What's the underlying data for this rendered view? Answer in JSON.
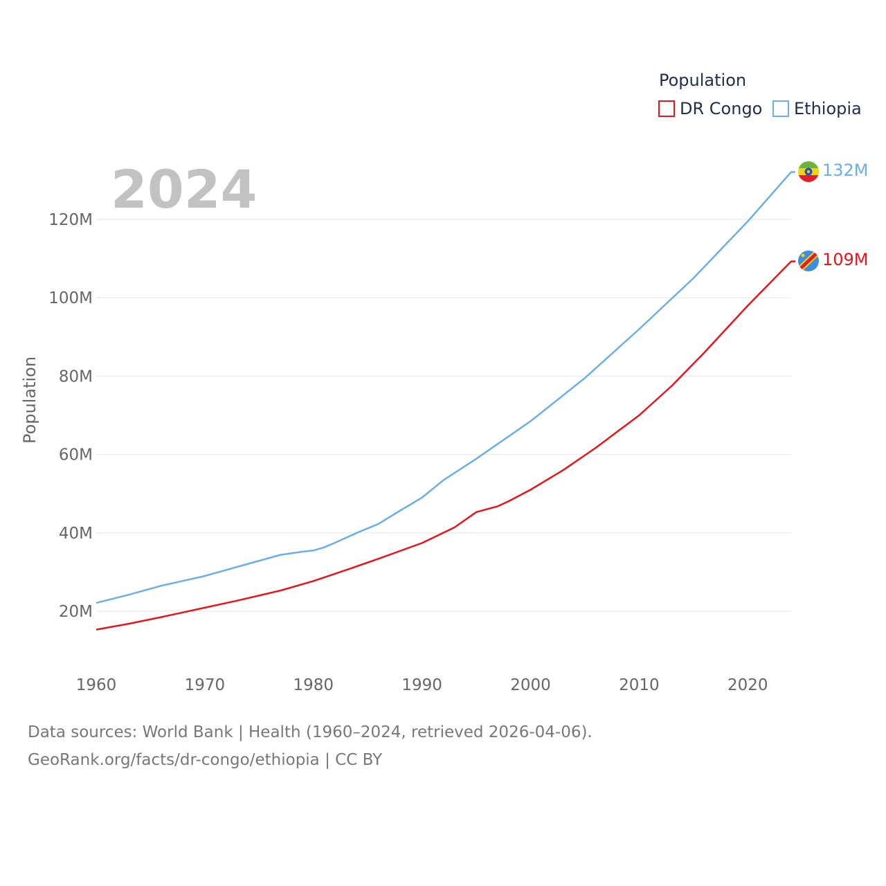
{
  "legend": {
    "title": "Population",
    "items": [
      {
        "label": "DR Congo",
        "color": "#e8141b"
      },
      {
        "label": "Ethiopia",
        "color": "#6aaee6"
      }
    ]
  },
  "year_label": "2024",
  "end_labels": {
    "dr_congo": "109M",
    "ethiopia": "132M"
  },
  "flag_icons": {
    "dr_congo": "dr-congo-flag-icon",
    "ethiopia": "ethiopia-flag-icon"
  },
  "footer": {
    "line1": "Data sources: World Bank | Health (1960–2024, retrieved 2026-04-06).",
    "line2": "GeoRank.org/facts/dr-congo/ethiopia | CC BY"
  },
  "chart_data": {
    "type": "line",
    "title": "",
    "xlabel": "",
    "ylabel": "Population",
    "xlim": [
      1960,
      2024
    ],
    "ylim": [
      8,
      132
    ],
    "x_ticks": [
      1960,
      1970,
      1980,
      1990,
      2000,
      2010,
      2020
    ],
    "x_tick_labels": [
      "1960",
      "1970",
      "1980",
      "1990",
      "2000",
      "2010",
      "2020"
    ],
    "y_ticks": [
      20,
      40,
      60,
      80,
      100,
      120
    ],
    "y_tick_labels": [
      "20M",
      "40M",
      "60M",
      "80M",
      "100M",
      "120M"
    ],
    "units": "millions",
    "series": [
      {
        "name": "DR Congo",
        "color": "#e8141b",
        "x": [
          1960,
          1963,
          1966,
          1970,
          1973,
          1977,
          1980,
          1983,
          1986,
          1990,
          1993,
          1995,
          1997,
          1998,
          2000,
          2003,
          2006,
          2010,
          2013,
          2016,
          2020,
          2024
        ],
        "values": [
          15.3,
          16.8,
          18.5,
          20.9,
          22.7,
          25.3,
          27.7,
          30.5,
          33.4,
          37.4,
          41.4,
          45.3,
          46.8,
          48.1,
          51.0,
          56.0,
          61.7,
          70.0,
          77.5,
          86.0,
          98.0,
          109.3
        ]
      },
      {
        "name": "Ethiopia",
        "color": "#6aaee6",
        "x": [
          1960,
          1963,
          1966,
          1970,
          1974,
          1977,
          1979,
          1980,
          1981,
          1982,
          1984,
          1986,
          1988,
          1990,
          1992,
          1995,
          2000,
          2005,
          2010,
          2015,
          2020,
          2024
        ],
        "values": [
          22.1,
          24.2,
          26.5,
          29.0,
          32.1,
          34.4,
          35.2,
          35.5,
          36.3,
          37.5,
          40.0,
          42.3,
          45.7,
          49.0,
          53.5,
          58.9,
          68.5,
          79.5,
          92.0,
          105.0,
          119.5,
          132.1
        ]
      }
    ]
  }
}
